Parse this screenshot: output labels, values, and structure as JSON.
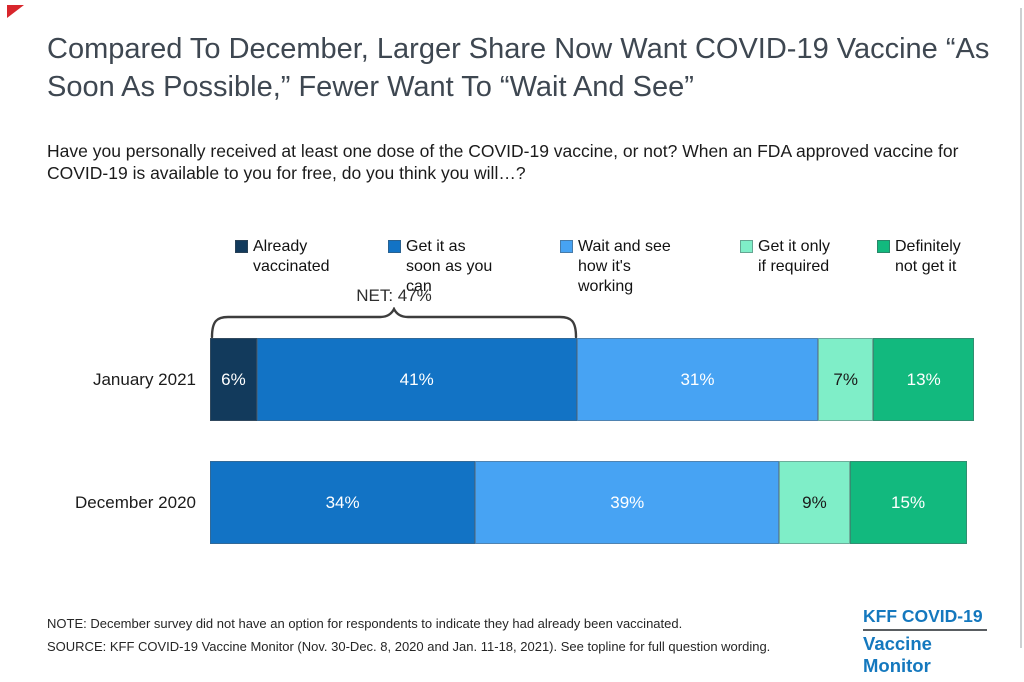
{
  "page": {
    "title": "Compared To December, Larger Share Now Want COVID-19 Vaccine “As Soon As Possible,” Fewer Want To “Wait And See”",
    "subtitle": "Have you personally received at least one dose of the COVID-19 vaccine, or not? When an FDA approved vaccine for COVID-19 is available to you for free, do you think you will…?",
    "note": "NOTE: December survey did not have an option for respondents to indicate they had already been vaccinated.",
    "source": "SOURCE: KFF COVID-19 Vaccine Monitor (Nov. 30-Dec. 8, 2020 and Jan. 11-18, 2021). See topline for full question wording.",
    "logo": {
      "line1": "KFF COVID-19",
      "line2": "Vaccine Monitor",
      "color": "#1478be"
    }
  },
  "chart_data": {
    "type": "bar",
    "orientation": "horizontal-stacked",
    "title": "Compared To December, Larger Share Now Want COVID-19 Vaccine “As Soon As Possible,” Fewer Want To “Wait And See”",
    "categories": [
      "January 2021",
      "December 2020"
    ],
    "series": [
      {
        "name": "Already vaccinated",
        "color": "#123a5c",
        "label_color": "#ffffff",
        "values": [
          6,
          null
        ]
      },
      {
        "name": "Get it as soon as you can",
        "color": "#1273c5",
        "label_color": "#ffffff",
        "values": [
          41,
          34
        ]
      },
      {
        "name": "Wait and see how it's working",
        "color": "#47a3f3",
        "label_color": "#ffffff",
        "values": [
          31,
          39
        ]
      },
      {
        "name": "Get it only if required",
        "color": "#7feec8",
        "label_color": "#1a1a1a",
        "values": [
          7,
          9
        ]
      },
      {
        "name": "Definitely not get it",
        "color": "#12b97e",
        "label_color": "#ffffff",
        "values": [
          13,
          15
        ]
      }
    ],
    "annotation": {
      "label": "NET: 47%",
      "applies_to": "January 2021",
      "span_pct": 47
    },
    "xlim": [
      0,
      100
    ],
    "value_suffix": "%",
    "legend_position": "top",
    "grid": false
  }
}
